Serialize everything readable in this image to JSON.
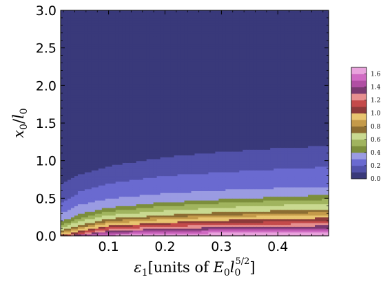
{
  "chart_data": {
    "type": "heatmap",
    "title": "",
    "xlabel": "ε₁[units of E₀l₀^{5/2}]",
    "ylabel": "x₀/l₀",
    "xlim": [
      0.015,
      0.49
    ],
    "ylim": [
      0.0,
      3.0
    ],
    "x_ticks": [
      0.1,
      0.2,
      0.3,
      0.4
    ],
    "x_tick_labels": [
      "0.1",
      "0.2",
      "0.3",
      "0.4"
    ],
    "y_ticks": [
      0.0,
      0.5,
      1.0,
      1.5,
      2.0,
      2.5,
      3.0
    ],
    "y_tick_labels": [
      "0.0",
      "0.5",
      "1.0",
      "1.5",
      "2.0",
      "2.5",
      "3.0"
    ],
    "grid": false,
    "colorbar": {
      "placement": "right",
      "levels": [
        0.0,
        0.1,
        0.2,
        0.3,
        0.4,
        0.5,
        0.6,
        0.7,
        0.8,
        0.9,
        1.0,
        1.1,
        1.2,
        1.3,
        1.4,
        1.5,
        1.6,
        1.7
      ],
      "tick_values": [
        0.0,
        0.2,
        0.4,
        0.6,
        0.8,
        1.0,
        1.2,
        1.4,
        1.6
      ],
      "tick_labels": [
        "0.0",
        "0.2",
        "0.4",
        "0.6",
        "0.8",
        "1.0",
        "1.2",
        "1.4",
        "1.6"
      ],
      "colors": [
        "#39397a",
        "#5151a9",
        "#6a6ad0",
        "#9a9be2",
        "#7c8e3c",
        "#a0b45e",
        "#c9d990",
        "#8c6d32",
        "#c49a4a",
        "#e8c46f",
        "#8c3a3a",
        "#c44a4a",
        "#e68f8f",
        "#7a3a70",
        "#b04fa3",
        "#d06bc3",
        "#e9a3dd"
      ]
    },
    "field": {
      "description": "colour level contours along epsilon_1",
      "eps": [
        0.02,
        0.05,
        0.1,
        0.2,
        0.3,
        0.4,
        0.49
      ],
      "contours": [
        {
          "level": 0.1,
          "x0": [
            0.7,
            0.82,
            0.93,
            1.05,
            1.12,
            1.17,
            1.2
          ]
        },
        {
          "level": 0.2,
          "x0": [
            0.45,
            0.6,
            0.7,
            0.8,
            0.85,
            0.89,
            0.92
          ]
        },
        {
          "level": 0.3,
          "x0": [
            0.32,
            0.42,
            0.5,
            0.57,
            0.61,
            0.64,
            0.66
          ]
        },
        {
          "level": 0.4,
          "x0": [
            0.2,
            0.3,
            0.38,
            0.45,
            0.49,
            0.52,
            0.55
          ]
        },
        {
          "level": 0.5,
          "x0": [
            0.16,
            0.24,
            0.33,
            0.4,
            0.44,
            0.47,
            0.49
          ]
        },
        {
          "level": 0.6,
          "x0": [
            0.12,
            0.2,
            0.28,
            0.34,
            0.38,
            0.41,
            0.43
          ]
        },
        {
          "level": 0.7,
          "x0": [
            0.08,
            0.15,
            0.23,
            0.28,
            0.32,
            0.34,
            0.36
          ]
        },
        {
          "level": 0.8,
          "x0": [
            0.06,
            0.12,
            0.2,
            0.25,
            0.28,
            0.3,
            0.32
          ]
        },
        {
          "level": 0.9,
          "x0": [
            0.04,
            0.1,
            0.17,
            0.22,
            0.25,
            0.27,
            0.28
          ]
        },
        {
          "level": 1.0,
          "x0": [
            0.02,
            0.07,
            0.14,
            0.18,
            0.21,
            0.23,
            0.24
          ]
        },
        {
          "level": 1.1,
          "x0": [
            0.0,
            0.05,
            0.12,
            0.16,
            0.18,
            0.19,
            0.2
          ]
        },
        {
          "level": 1.2,
          "x0": [
            0.0,
            0.03,
            0.09,
            0.13,
            0.15,
            0.16,
            0.17
          ]
        },
        {
          "level": 1.3,
          "x0": [
            0.0,
            0.02,
            0.07,
            0.1,
            0.12,
            0.13,
            0.14
          ]
        },
        {
          "level": 1.4,
          "x0": [
            0.0,
            0.01,
            0.05,
            0.08,
            0.09,
            0.1,
            0.11
          ]
        },
        {
          "level": 1.5,
          "x0": [
            0.0,
            0.0,
            0.03,
            0.05,
            0.07,
            0.08,
            0.08
          ]
        },
        {
          "level": 1.6,
          "x0": [
            0.0,
            0.0,
            0.01,
            0.03,
            0.04,
            0.05,
            0.05
          ]
        }
      ]
    }
  }
}
